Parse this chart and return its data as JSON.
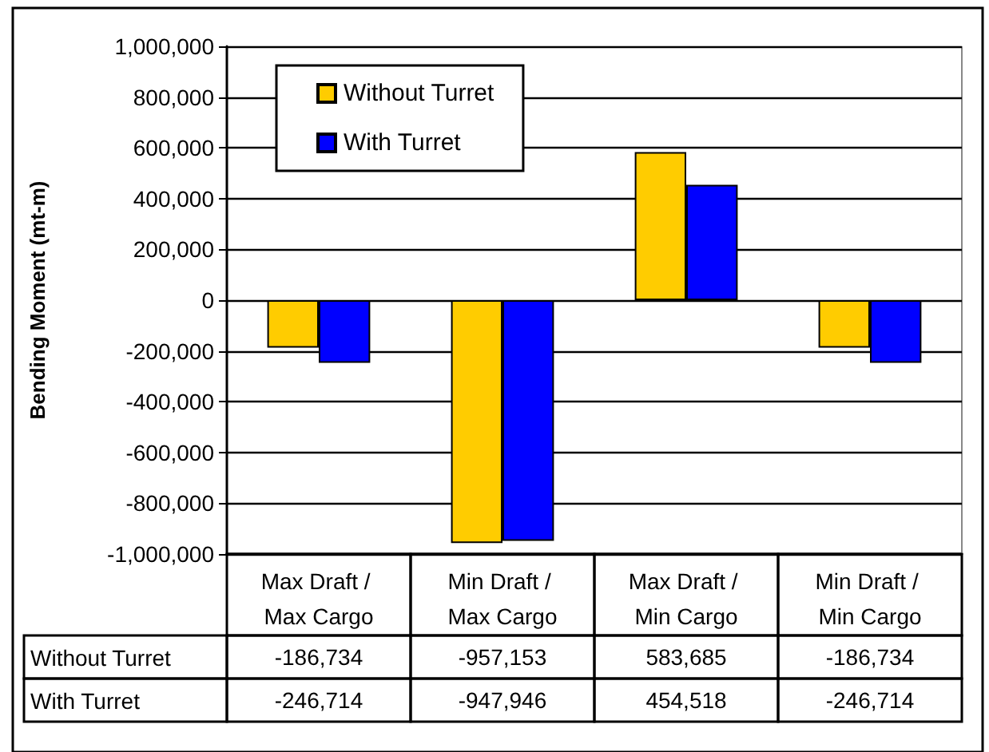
{
  "chart_data": {
    "type": "bar",
    "ylabel": "Bending Moment (mt-m)",
    "categories": [
      "Max Draft / Max Cargo",
      "Min Draft / Max Cargo",
      "Max Draft / Min Cargo",
      "Min Draft / Min Cargo"
    ],
    "series": [
      {
        "name": "Without Turret",
        "color": "#ffcc00",
        "values": [
          -186734,
          -957153,
          583685,
          -186734
        ],
        "value_labels": [
          "-186,734",
          "-957,153",
          "583,685",
          "-186,734"
        ]
      },
      {
        "name": "With Turret",
        "color": "#0000ff",
        "values": [
          -246714,
          -947946,
          454518,
          -246714
        ],
        "value_labels": [
          "-246,714",
          "-947,946",
          "454,518",
          "-246,714"
        ]
      }
    ],
    "ylim": [
      -1000000,
      1000000
    ],
    "yticks": [
      {
        "value": -1000000,
        "label": "-1,000,000"
      },
      {
        "value": -800000,
        "label": "-800,000"
      },
      {
        "value": -600000,
        "label": "-600,000"
      },
      {
        "value": -400000,
        "label": "-400,000"
      },
      {
        "value": -200000,
        "label": "-200,000"
      },
      0,
      {
        "value": 200000,
        "label": "200,000"
      },
      {
        "value": 400000,
        "label": "400,000"
      },
      {
        "value": 600000,
        "label": "600,000"
      },
      {
        "value": 800000,
        "label": "800,000"
      },
      {
        "value": 1000000,
        "label": "1,000,000"
      }
    ],
    "grid": "y",
    "legend": "top left"
  }
}
